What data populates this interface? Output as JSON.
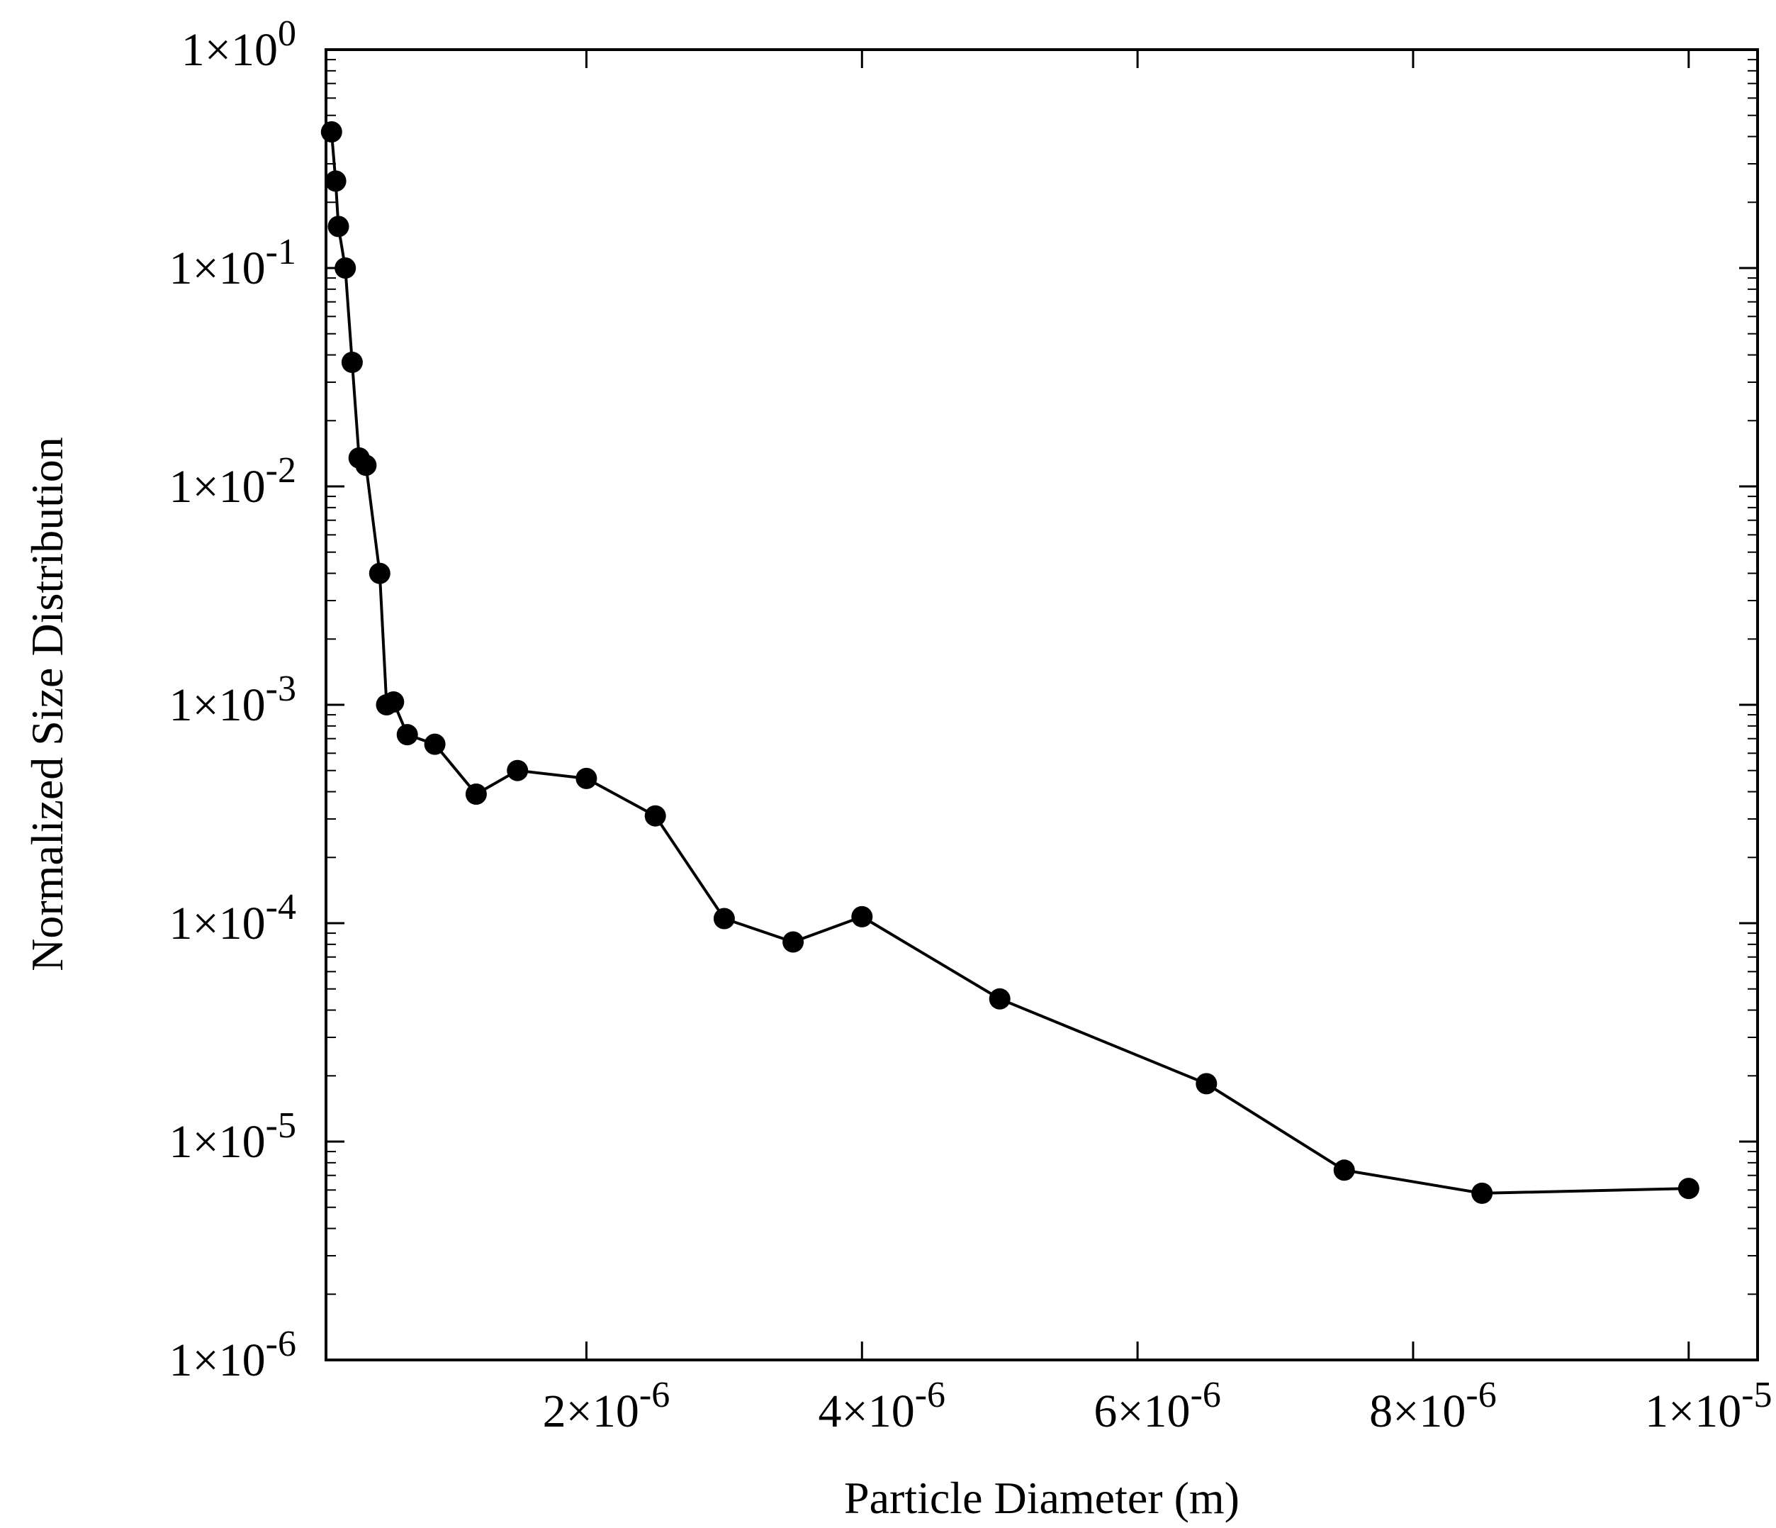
{
  "chart_data": {
    "type": "line",
    "title": "",
    "xlabel": "Particle Diameter (m)",
    "ylabel": "Normalized Size Distribution",
    "x_scale": "linear",
    "y_scale": "log",
    "xlim": [
      1.1e-07,
      1.05e-05
    ],
    "ylim": [
      1e-06,
      1
    ],
    "x_ticks": [
      {
        "value": 2e-06,
        "mant": "2",
        "exp": "-6"
      },
      {
        "value": 4e-06,
        "mant": "4",
        "exp": "-6"
      },
      {
        "value": 6e-06,
        "mant": "6",
        "exp": "-6"
      },
      {
        "value": 8e-06,
        "mant": "8",
        "exp": "-6"
      },
      {
        "value": 1e-05,
        "mant": "1",
        "exp": "-5"
      }
    ],
    "y_ticks": [
      {
        "value": 1,
        "mant": "1",
        "exp": "0"
      },
      {
        "value": 0.1,
        "mant": "1",
        "exp": "-1"
      },
      {
        "value": 0.01,
        "mant": "1",
        "exp": "-2"
      },
      {
        "value": 0.001,
        "mant": "1",
        "exp": "-3"
      },
      {
        "value": 0.0001,
        "mant": "1",
        "exp": "-4"
      },
      {
        "value": 1e-05,
        "mant": "1",
        "exp": "-5"
      },
      {
        "value": 1e-06,
        "mant": "1",
        "exp": "-6"
      }
    ],
    "grid": false,
    "legend": "none",
    "colors": {
      "line": "#000000",
      "marker": "#000000",
      "axes": "#000000",
      "background": "#ffffff"
    },
    "series": [
      {
        "marker": "filled-circle",
        "x": [
          1.5e-07,
          1.8e-07,
          2e-07,
          2.5e-07,
          3e-07,
          3.5e-07,
          4e-07,
          5e-07,
          5.5e-07,
          6e-07,
          7e-07,
          9e-07,
          1.2e-06,
          1.5e-06,
          2e-06,
          2.5e-06,
          3e-06,
          3.5e-06,
          4e-06,
          5e-06,
          6.5e-06,
          7.5e-06,
          8.5e-06,
          1e-05
        ],
        "y": [
          0.42,
          0.25,
          0.155,
          0.1,
          0.037,
          0.0135,
          0.0125,
          0.004,
          0.001,
          0.00103,
          0.00073,
          0.00066,
          0.00039,
          0.0005,
          0.00046,
          0.00031,
          0.000105,
          8.2e-05,
          0.000107,
          4.5e-05,
          1.84e-05,
          7.4e-06,
          5.8e-06,
          6.1e-06
        ]
      }
    ]
  }
}
